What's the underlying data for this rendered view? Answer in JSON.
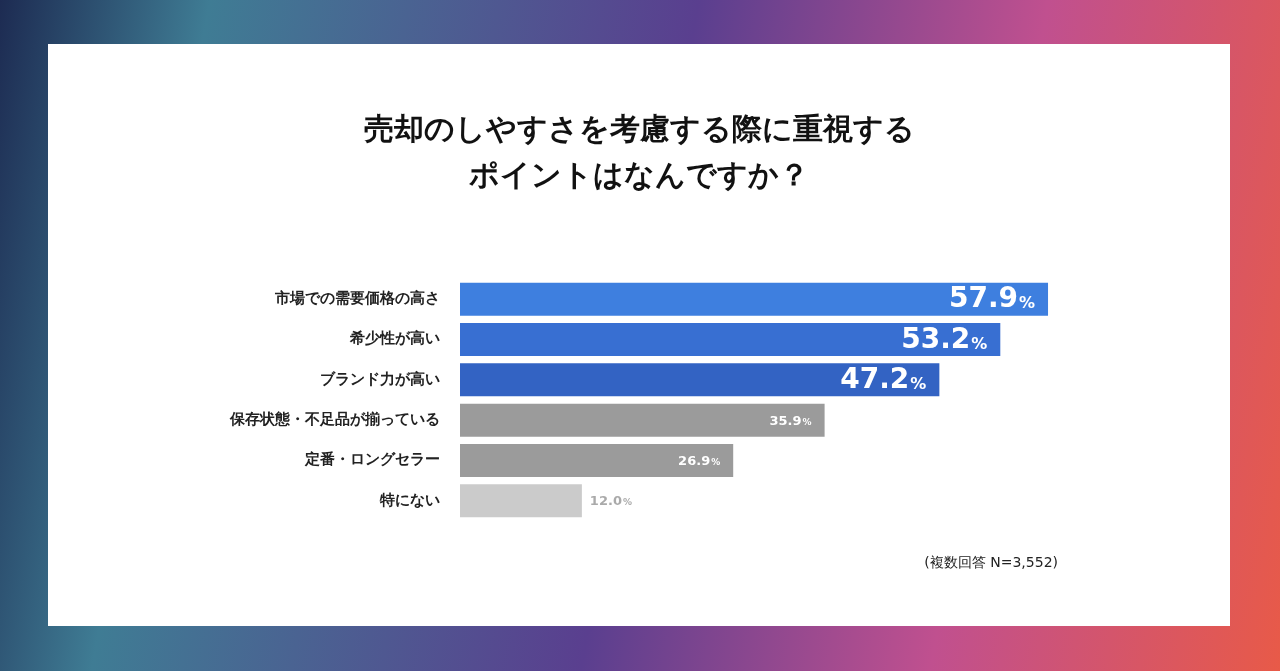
{
  "chart_data": {
    "type": "bar",
    "orientation": "horizontal",
    "title": "売却のしやすさを考慮する際に重視するポイントはなんですか？",
    "categories": [
      "市場での需要価格の高さ",
      "希少性が高い",
      "ブランド力が高い",
      "保存状態・不足品が揃っている",
      "定番・ロングセラー",
      "特にない"
    ],
    "values": [
      57.9,
      53.2,
      47.2,
      35.9,
      26.9,
      12.0
    ],
    "colors": [
      "#3e7fdf",
      "#386fd2",
      "#3363c3",
      "#9b9b9b",
      "#9b9b9b",
      "#cbcbcb"
    ],
    "value_labels": [
      "57.9%",
      "53.2%",
      "47.2%",
      "35.9%",
      "26.9%",
      "12.0%"
    ],
    "annotations": [
      "(複数回答 N=3,552)"
    ],
    "legend": false,
    "grid": false,
    "tick_labels": "y"
  }
}
